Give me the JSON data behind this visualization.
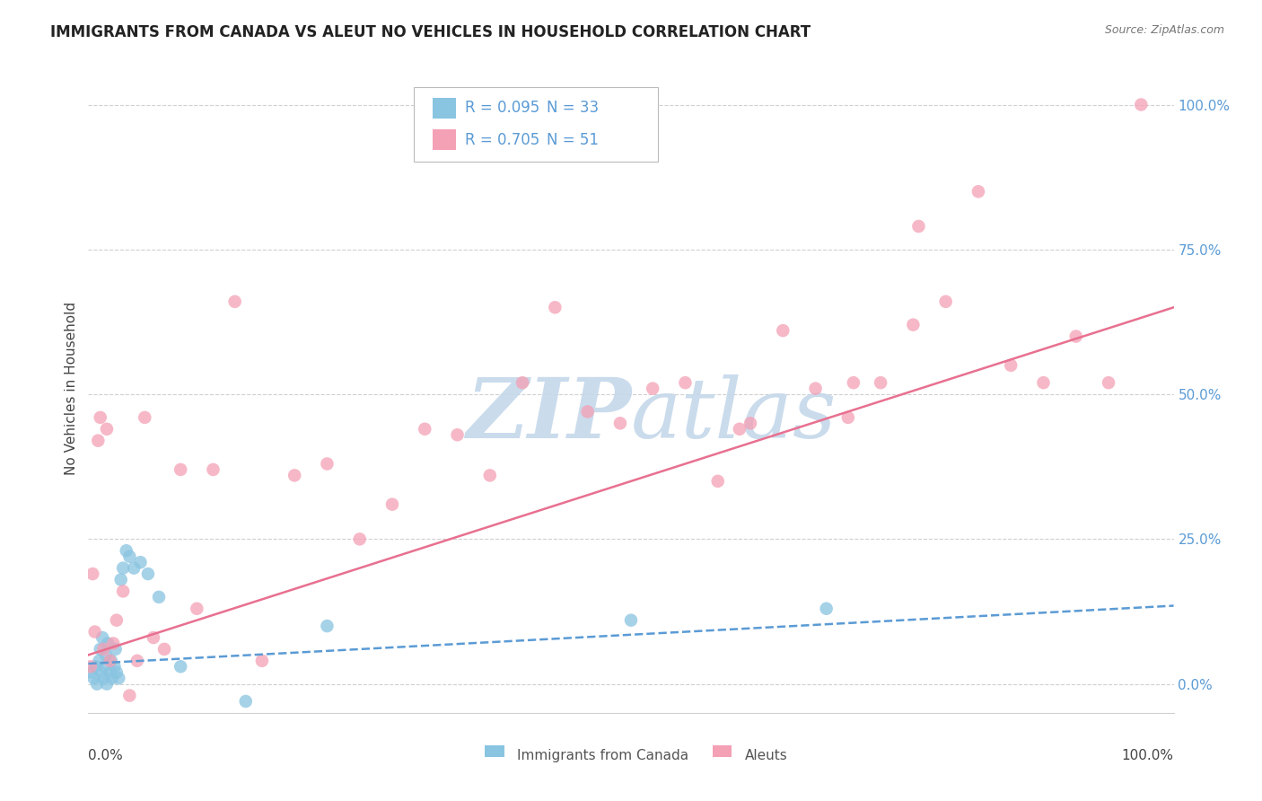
{
  "title": "IMMIGRANTS FROM CANADA VS ALEUT NO VEHICLES IN HOUSEHOLD CORRELATION CHART",
  "source": "Source: ZipAtlas.com",
  "ylabel": "No Vehicles in Household",
  "ytick_values": [
    0,
    25,
    50,
    75,
    100
  ],
  "ytick_labels": [
    "0.0%",
    "25.0%",
    "50.0%",
    "75.0%",
    "100.0%"
  ],
  "xlim": [
    0,
    100
  ],
  "ylim": [
    -5,
    107
  ],
  "legend_blue_r": "R = 0.095",
  "legend_blue_n": "N = 33",
  "legend_pink_r": "R = 0.705",
  "legend_pink_n": "N = 51",
  "legend_blue_label": "Immigrants from Canada",
  "legend_pink_label": "Aleuts",
  "blue_color": "#89c4e1",
  "pink_color": "#f4a0b5",
  "blue_line_color": "#5b9bd5",
  "pink_line_color": "#e87090",
  "grid_color": "#d0d0d0",
  "watermark_color": "#c5d8ea",
  "blue_scatter_x": [
    0.3,
    0.5,
    0.7,
    0.8,
    1.0,
    1.1,
    1.2,
    1.3,
    1.4,
    1.5,
    1.6,
    1.7,
    1.8,
    2.0,
    2.1,
    2.2,
    2.4,
    2.5,
    2.6,
    2.8,
    3.0,
    3.2,
    3.5,
    3.8,
    4.2,
    4.8,
    5.5,
    6.5,
    8.5,
    14.5,
    22.0,
    50.0,
    68.0
  ],
  "blue_scatter_y": [
    2,
    1,
    3,
    0,
    4,
    6,
    2,
    8,
    1,
    3,
    5,
    0,
    7,
    2,
    4,
    1,
    3,
    6,
    2,
    1,
    18,
    20,
    23,
    22,
    20,
    21,
    19,
    15,
    3,
    -3,
    10,
    11,
    13
  ],
  "pink_scatter_x": [
    0.2,
    0.4,
    0.6,
    0.9,
    1.1,
    1.4,
    1.7,
    2.0,
    2.3,
    2.6,
    3.2,
    3.8,
    4.5,
    5.2,
    6.0,
    7.0,
    8.5,
    10.0,
    11.5,
    13.5,
    16.0,
    19.0,
    22.0,
    25.0,
    28.0,
    31.0,
    34.0,
    37.0,
    40.0,
    43.0,
    46.0,
    49.0,
    52.0,
    55.0,
    58.0,
    61.0,
    64.0,
    67.0,
    70.0,
    73.0,
    76.0,
    79.0,
    82.0,
    85.0,
    88.0,
    91.0,
    94.0,
    97.0,
    60.0,
    70.5,
    76.5
  ],
  "pink_scatter_y": [
    3,
    19,
    9,
    42,
    46,
    6,
    44,
    4,
    7,
    11,
    16,
    -2,
    4,
    46,
    8,
    6,
    37,
    13,
    37,
    66,
    4,
    36,
    38,
    25,
    31,
    44,
    43,
    36,
    52,
    65,
    47,
    45,
    51,
    52,
    35,
    45,
    61,
    51,
    46,
    52,
    62,
    66,
    85,
    55,
    52,
    60,
    52,
    100,
    44,
    52,
    79
  ],
  "blue_trend_x": [
    0,
    100
  ],
  "blue_trend_y": [
    3.5,
    13.5
  ],
  "pink_trend_x": [
    0,
    100
  ],
  "pink_trend_y": [
    5.0,
    65.0
  ]
}
